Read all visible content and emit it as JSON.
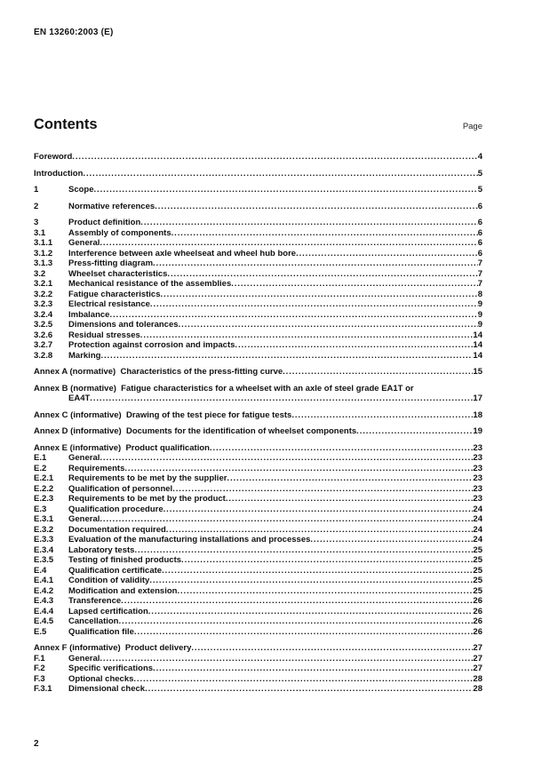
{
  "page": {
    "doc_ref": "EN 13260:2003 (E)",
    "footer_page_number": "2"
  },
  "contents": {
    "heading": "Contents",
    "page_column_label": "Page",
    "groups": [
      {
        "entries": [
          {
            "num": "",
            "title": "Foreword",
            "page": "4"
          }
        ]
      },
      {
        "entries": [
          {
            "num": "",
            "title": "Introduction",
            "page": "5"
          }
        ]
      },
      {
        "entries": [
          {
            "num": "1",
            "title": "Scope",
            "page": "5"
          }
        ]
      },
      {
        "entries": [
          {
            "num": "2",
            "title": "Normative references",
            "page": "6"
          }
        ]
      },
      {
        "entries": [
          {
            "num": "3",
            "title": "Product definition",
            "page": "6"
          },
          {
            "num": "3.1",
            "title": "Assembly of components",
            "page": "6"
          },
          {
            "num": "3.1.1",
            "title": "General",
            "page": "6"
          },
          {
            "num": "3.1.2",
            "title": "Interference between axle wheelseat and wheel hub bore",
            "page": "6"
          },
          {
            "num": "3.1.3",
            "title": "Press-fitting diagram",
            "page": "7"
          },
          {
            "num": "3.2",
            "title": "Wheelset characteristics",
            "page": "7"
          },
          {
            "num": "3.2.1",
            "title": "Mechanical resistance of the assemblies",
            "page": "7"
          },
          {
            "num": "3.2.2",
            "title": "Fatigue characteristics",
            "page": "8"
          },
          {
            "num": "3.2.3",
            "title": "Electrical resistance",
            "page": "9"
          },
          {
            "num": "3.2.4",
            "title": "Imbalance",
            "page": "9"
          },
          {
            "num": "3.2.5",
            "title": "Dimensions and tolerances",
            "page": "9"
          },
          {
            "num": "3.2.6",
            "title": "Residual stresses",
            "page": "14"
          },
          {
            "num": "3.2.7",
            "title": "Protection against corrosion and impacts",
            "page": "14"
          },
          {
            "num": "3.2.8",
            "title": "Marking",
            "page": "14"
          }
        ]
      },
      {
        "entries": [
          {
            "num": "",
            "title": "Annex A (normative)  Characteristics of the press-fitting curve",
            "page": "15"
          }
        ]
      },
      {
        "entries": [
          {
            "num": "",
            "title": "Annex B (normative)  Fatigue characteristics for a wheelset with an axle of steel grade EA1T or",
            "title2": "EA4T",
            "page": "17"
          }
        ]
      },
      {
        "entries": [
          {
            "num": "",
            "title": "Annex C (informative)  Drawing of the test piece for fatigue tests",
            "page": "18"
          }
        ]
      },
      {
        "entries": [
          {
            "num": "",
            "title": "Annex D (informative)  Documents for the identification of wheelset components",
            "page": "19"
          }
        ]
      },
      {
        "entries": [
          {
            "num": "",
            "title": "Annex E (informative)  Product qualification",
            "page": "23"
          },
          {
            "num": "E.1",
            "title": "General",
            "page": "23"
          },
          {
            "num": "E.2",
            "title": "Requirements",
            "page": "23"
          },
          {
            "num": "E.2.1",
            "title": "Requirements to be met by the supplier",
            "page": "23"
          },
          {
            "num": "E.2.2",
            "title": "Qualification of personnel",
            "page": "23"
          },
          {
            "num": "E.2.3",
            "title": "Requirements to be met by the product",
            "page": "23"
          },
          {
            "num": "E.3",
            "title": "Qualification procedure",
            "page": "24"
          },
          {
            "num": "E.3.1",
            "title": "General",
            "page": "24"
          },
          {
            "num": "E.3.2",
            "title": "Documentation required",
            "page": "24"
          },
          {
            "num": "E.3.3",
            "title": "Evaluation of the manufacturing installations and processes",
            "page": "24"
          },
          {
            "num": "E.3.4",
            "title": "Laboratory tests",
            "page": "25"
          },
          {
            "num": "E.3.5",
            "title": "Testing of finished products",
            "page": "25"
          },
          {
            "num": "E.4",
            "title": "Qualification certificate",
            "page": "25"
          },
          {
            "num": "E.4.1",
            "title": "Condition of validity",
            "page": "25"
          },
          {
            "num": "E.4.2",
            "title": "Modification and extension",
            "page": "25"
          },
          {
            "num": "E.4.3",
            "title": "Transference",
            "page": "26"
          },
          {
            "num": "E.4.4",
            "title": "Lapsed certification",
            "page": "26"
          },
          {
            "num": "E.4.5",
            "title": "Cancellation",
            "page": "26"
          },
          {
            "num": "E.5",
            "title": "Qualification file",
            "page": "26"
          }
        ]
      },
      {
        "entries": [
          {
            "num": "",
            "title": "Annex F (informative)  Product delivery",
            "page": "27"
          },
          {
            "num": "F.1",
            "title": "General",
            "page": "27"
          },
          {
            "num": "F.2",
            "title": "Specific verifications",
            "page": "27"
          },
          {
            "num": "F.3",
            "title": "Optional checks",
            "page": "28"
          },
          {
            "num": "F.3.1",
            "title": "Dimensional check",
            "page": "28"
          }
        ]
      }
    ]
  }
}
